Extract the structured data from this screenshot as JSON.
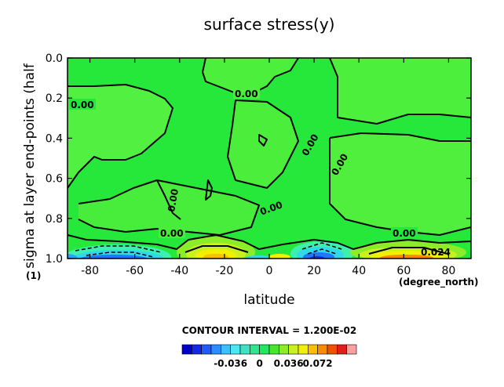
{
  "chart_data": {
    "type": "contour",
    "title": "surface stress(y)",
    "xlabel": "latitude",
    "ylabel": "sigma at layer end-points (half",
    "x_units": "(degree_north)",
    "y_units": "(1)",
    "xlim": [
      -90,
      90
    ],
    "ylim": [
      1.0,
      0.0
    ],
    "x_ticks": [
      -80,
      -60,
      -40,
      -20,
      0,
      20,
      40,
      60,
      80
    ],
    "x_tick_labels": [
      "-80",
      "-60",
      "-40",
      "-20",
      "0",
      "20",
      "40",
      "60",
      "80"
    ],
    "y_ticks": [
      0.0,
      0.2,
      0.4,
      0.6,
      0.8,
      1.0
    ],
    "y_tick_labels": [
      "0.0",
      "0.2",
      "0.4",
      "0.6",
      "0.8",
      "1.0"
    ],
    "contour_interval_text": "CONTOUR INTERVAL = 1.200E-02",
    "contour_labels": [
      {
        "text": "0.00",
        "lat": -80,
        "sigma": 0.24
      },
      {
        "text": "0.00",
        "lat": -5,
        "sigma": 0.17
      },
      {
        "text": "0.00",
        "lat": 17,
        "sigma": 0.44
      },
      {
        "text": "0.00",
        "lat": 28,
        "sigma": 0.54
      },
      {
        "text": "0.00",
        "lat": -45,
        "sigma": 0.66
      },
      {
        "text": "0.00",
        "lat": 0,
        "sigma": 0.76
      },
      {
        "text": "0.00",
        "lat": -45,
        "sigma": 0.89
      },
      {
        "text": "0.00",
        "lat": 50,
        "sigma": 0.89
      },
      {
        "text": "0.024",
        "lat": 68,
        "sigma": 0.97
      }
    ],
    "features": [
      {
        "kind": "negative",
        "lat_range": [
          -88,
          -40
        ],
        "sigma_range": [
          0.93,
          1.0
        ],
        "min_value": -0.048
      },
      {
        "kind": "positive",
        "lat_range": [
          -35,
          -5
        ],
        "sigma_range": [
          0.93,
          1.0
        ],
        "max_value": 0.036
      },
      {
        "kind": "negative",
        "lat_range": [
          15,
          35
        ],
        "sigma_range": [
          0.94,
          1.0
        ],
        "min_value": -0.036
      },
      {
        "kind": "positive",
        "lat_range": [
          40,
          88
        ],
        "sigma_range": [
          0.94,
          1.0
        ],
        "max_value": 0.036
      }
    ],
    "colorbar": {
      "tick_values": [
        -0.036,
        0,
        0.036,
        0.072
      ],
      "tick_labels": [
        "-0.036",
        "0",
        "0.036",
        "0.072"
      ],
      "colors": [
        "#0000c8",
        "#1428e6",
        "#1e5aff",
        "#2c8cff",
        "#3ec0ff",
        "#4ee6f0",
        "#40e0c0",
        "#30e490",
        "#22e860",
        "#46e62e",
        "#8cec28",
        "#cbf020",
        "#f0f000",
        "#f8c000",
        "#f88c00",
        "#f05000",
        "#e01e1e",
        "#f8a0a0"
      ]
    }
  }
}
